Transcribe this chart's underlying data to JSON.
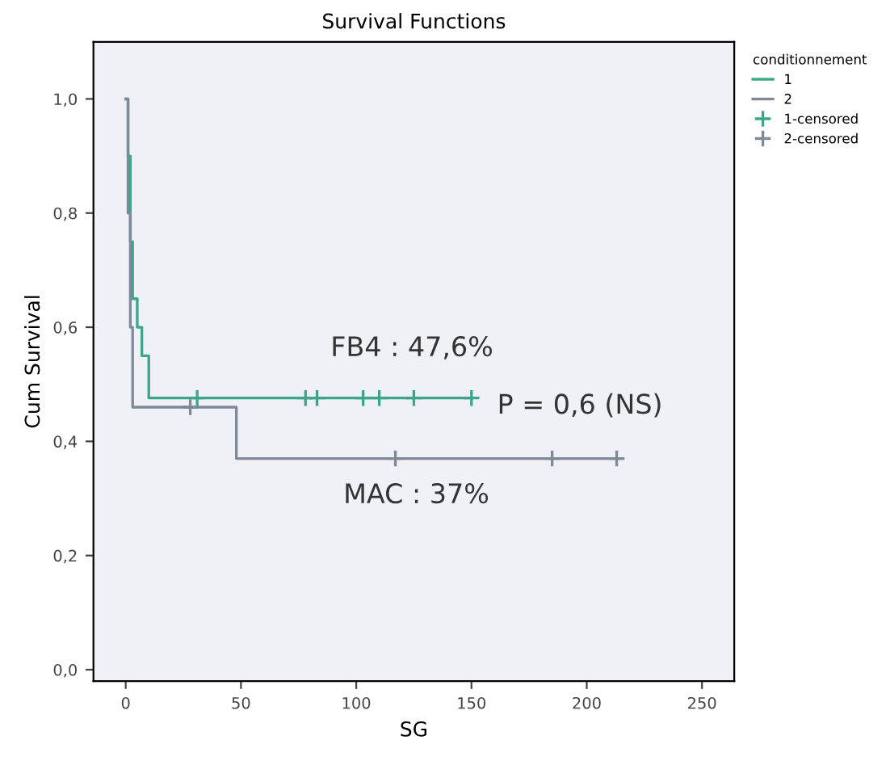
{
  "chart_data": {
    "type": "step",
    "title": "Survival Functions",
    "xlabel": "SG",
    "ylabel": "Cum Survival",
    "legend_title": "conditionnement",
    "series": [
      {
        "name": "1",
        "color": "#3aa68c",
        "x": [
          0,
          1,
          2,
          3,
          5,
          7,
          10,
          150
        ],
        "values": [
          1.0,
          0.9,
          0.75,
          0.65,
          0.6,
          0.55,
          0.476,
          0.476
        ]
      },
      {
        "name": "2",
        "color": "#7f8a99",
        "x": [
          0,
          1,
          2,
          3,
          48,
          215
        ],
        "values": [
          1.0,
          0.8,
          0.6,
          0.46,
          0.37,
          0.37
        ]
      },
      {
        "name": "1-censored",
        "type": "scatter",
        "marker": "cross",
        "color": "#3aa68c",
        "x": [
          31,
          78,
          83,
          103,
          110,
          125,
          150
        ],
        "values": [
          0.476,
          0.476,
          0.476,
          0.476,
          0.476,
          0.476,
          0.476
        ]
      },
      {
        "name": "2-censored",
        "type": "scatter",
        "marker": "cross",
        "color": "#7f8a99",
        "x": [
          28,
          117,
          185,
          213
        ],
        "values": [
          0.46,
          0.37,
          0.37,
          0.37
        ]
      }
    ],
    "annotations": [
      "FB4 : 47,6%",
      "P = 0,6 (NS)",
      "MAC : 37%"
    ],
    "xlim": [
      -14,
      264
    ],
    "xticks": [
      0,
      50,
      100,
      150,
      200,
      250
    ],
    "ylim": [
      -0.02,
      1.1
    ],
    "yticks": [
      {
        "value": 0.0,
        "label": "0,0"
      },
      {
        "value": 0.2,
        "label": "0,2"
      },
      {
        "value": 0.4,
        "label": "0,4"
      },
      {
        "value": 0.6,
        "label": "0,6"
      },
      {
        "value": 0.8,
        "label": "0,8"
      },
      {
        "value": 1.0,
        "label": "1,0"
      }
    ],
    "grid": false,
    "legend": "top right"
  }
}
